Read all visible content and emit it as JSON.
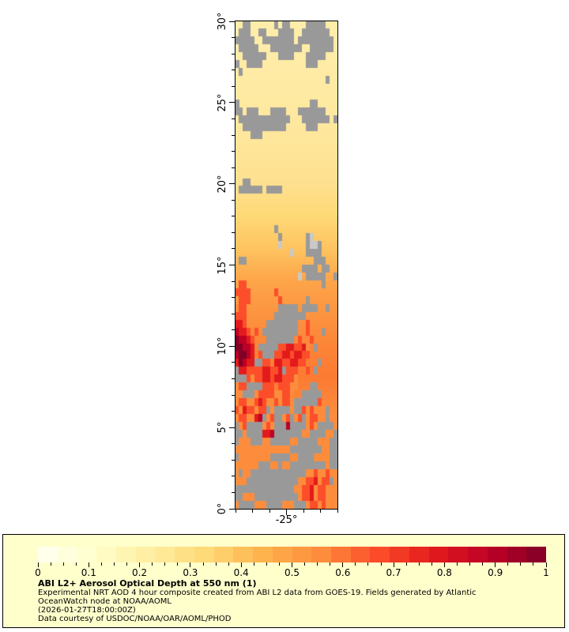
{
  "figure": {
    "background": "#ffffff",
    "map": {
      "x_axis": {
        "label": "-25°",
        "range_lon": [
          -28,
          -22
        ],
        "tick_count": 7,
        "labeled_tick_index": 3
      },
      "y_axis": {
        "labels": [
          "30°",
          "25°",
          "20°",
          "15°",
          "10°",
          "5°",
          "0°"
        ],
        "range_lat": [
          0,
          30
        ],
        "minor_step_deg": 1,
        "major_step_deg": 5
      }
    }
  },
  "legend_panel": {
    "bg": "#ffffcc",
    "title": "ABI L2+ Aerosol Optical Depth at 550 nm (1)",
    "line1": "Experimental NRT AOD 4 hour composite created from ABI L2 data from GOES-19. Fields generated by Atlantic",
    "line2": "OceanWatch node at NOAA/AOML",
    "line3": "(2026-01-27T18:00:00Z)",
    "line4": "Data courtesy of USDOC/NOAA/OAR/AOML/PHOD"
  },
  "chart_data": {
    "type": "heatmap",
    "title": "ABI L2+ Aerosol Optical Depth at 550 nm (1)",
    "subtitle_lines": [
      "Experimental NRT AOD 4 hour composite created from ABI L2 data from GOES-19. Fields generated by Atlantic",
      "OceanWatch node at NOAA/AOML",
      "(2026-01-27T18:00:00Z)",
      "Data courtesy of USDOC/NOAA/OAR/AOML/PHOD"
    ],
    "x": {
      "label": "-25°",
      "range": [
        -28,
        -22
      ],
      "unit": "degrees longitude"
    },
    "y": {
      "tick_labels": [
        "30°",
        "25°",
        "20°",
        "15°",
        "10°",
        "5°",
        "0°"
      ],
      "range": [
        0,
        30
      ],
      "unit": "degrees latitude"
    },
    "colorbar": {
      "min": 0,
      "max": 1,
      "segments": 26,
      "tick_labels": [
        "0",
        "0.1",
        "0.2",
        "0.3",
        "0.4",
        "0.5",
        "0.6",
        "0.7",
        "0.8",
        "0.9",
        "1"
      ],
      "minor_tick_interval": 0.025,
      "stops": [
        "#fffff2",
        "#ffffcc",
        "#ffeda0",
        "#fed976",
        "#feb24c",
        "#fd8d3c",
        "#fc4e2a",
        "#e31a1c",
        "#bd0026",
        "#800026"
      ]
    },
    "no_data_color": "#999999",
    "background_profile": [
      {
        "t": 0.0,
        "color": "#ffeeab"
      },
      {
        "t": 0.2,
        "color": "#ffe9a0"
      },
      {
        "t": 0.33,
        "color": "#fee190"
      },
      {
        "t": 0.4,
        "color": "#fed976"
      },
      {
        "t": 0.47,
        "color": "#fec35f"
      },
      {
        "t": 0.53,
        "color": "#fda64a"
      },
      {
        "t": 0.6,
        "color": "#fd9440"
      },
      {
        "t": 0.67,
        "color": "#fc8437"
      },
      {
        "t": 0.73,
        "color": "#fc7b33"
      },
      {
        "t": 0.8,
        "color": "#fd8b3c"
      },
      {
        "t": 1.0,
        "color": "#fd9342"
      }
    ],
    "grid": {
      "cols": 26,
      "rows": 62,
      "palette": {
        ".": "",
        "1": "#ffeda0",
        "2": "#fed976",
        "3": "#feb24c",
        "4": "#fd8d3c",
        "5": "#fc4e2a",
        "6": "#e31a1c",
        "7": "#bd0026",
        "8": "#800026",
        "G": "#999999",
        "L": "#c9c9c9"
      },
      "bin_values": {
        "1": 0.15,
        "2": 0.25,
        "3": 0.35,
        "4": 0.45,
        "5": 0.55,
        "6": 0.65,
        "7": 0.75,
        "8": 0.85,
        "G": "cloud/no-data",
        "L": "thin cloud",
        ".": "clear-sky background AOD"
      },
      "rows_data": [
        "..GG......G.GG....GGGGG...",
        ".GGG..GG...GGGG..GGGGGGG..",
        "GGGGG..GGGGGGGG.GGGGGGGGG.",
        ".GGGGG...GGGGGGGG..GGGGGG.",
        "..GGGGGG...GGGG...GGGGG...",
        "G..GGGG...........GGG.....",
        ".G........................",
        ".......................G..",
        "..........................",
        "..........................",
        "G..................GG.....",
        "GG.GGG...GGGG...GGGGGGG...",
        ".GGGGGGGGGGGGG...GGGGGGG.G",
        "..GGGGGGGGGGG.....GGG.....",
        "....GGG...................",
        "..........................",
        "..........................",
        "..........................",
        "..........................",
        "..........................",
        "..GG......................",
        ".GGGGGG.GGGG..............",
        "..........................",
        "..........................",
        "..........................",
        "..........................",
        "..........G...............",
        "...........G......GL......",
        "...........L......GLLG....",
        "..............L...GGGG....",
        ".GG.................GGG...",
        ".................GGGG.GG..",
        "................L.GGGGG..G",
        ".55...................G...",
        "5555......5...............",
        ".555.......5......G.......",
        "455........GGGGG.GGGG..G..",
        "555.......GGGGGGGG........",
        "665.....GGGGGGGG..5.......",
        "7665.5.GGGGGGGGG..5...G...",
        "87765...GGGGGGG.5..5......",
        "88776.GGGGG55665564.G.....",
        "78876.5GGG556656655.......",
        "68766GG55.66556655...G....",
        "G66555566556G555..5.G.....",
        "GGG5455665665554..........",
        "455GGGG555.55544...GG.....",
        "44GGG4555544554..GGGGG....",
        "455445654454554GGGGGG5....",
        "54655455G4GGGG4GG5454.4G..",
        "4554467G45GG45G45G455.4G44",
        "G45GGGG454GGG7GGGG454GGGG4",
        "GG4GGGG667GGGGGGG44GGGG44G",
        "G444GGG44GGGGG44GGGGG444GG",
        "44444444444444GGGGGGGG44GG",
        "G44444444GGGGG44GGGG4444GG",
        "444444GGG44G44GGGGGGGGG4GG",
        "4G44GGGGGGGGGGGGGG44544544",
        "444GGGGGGGGGGGGG44556455G4",
        "GGGGGGGGGGGGGGG44556455444",
        "GG444GGGGGGGGGGG4556455444",
        "4GGGG444GGGG444GGG45545444"
      ]
    }
  }
}
